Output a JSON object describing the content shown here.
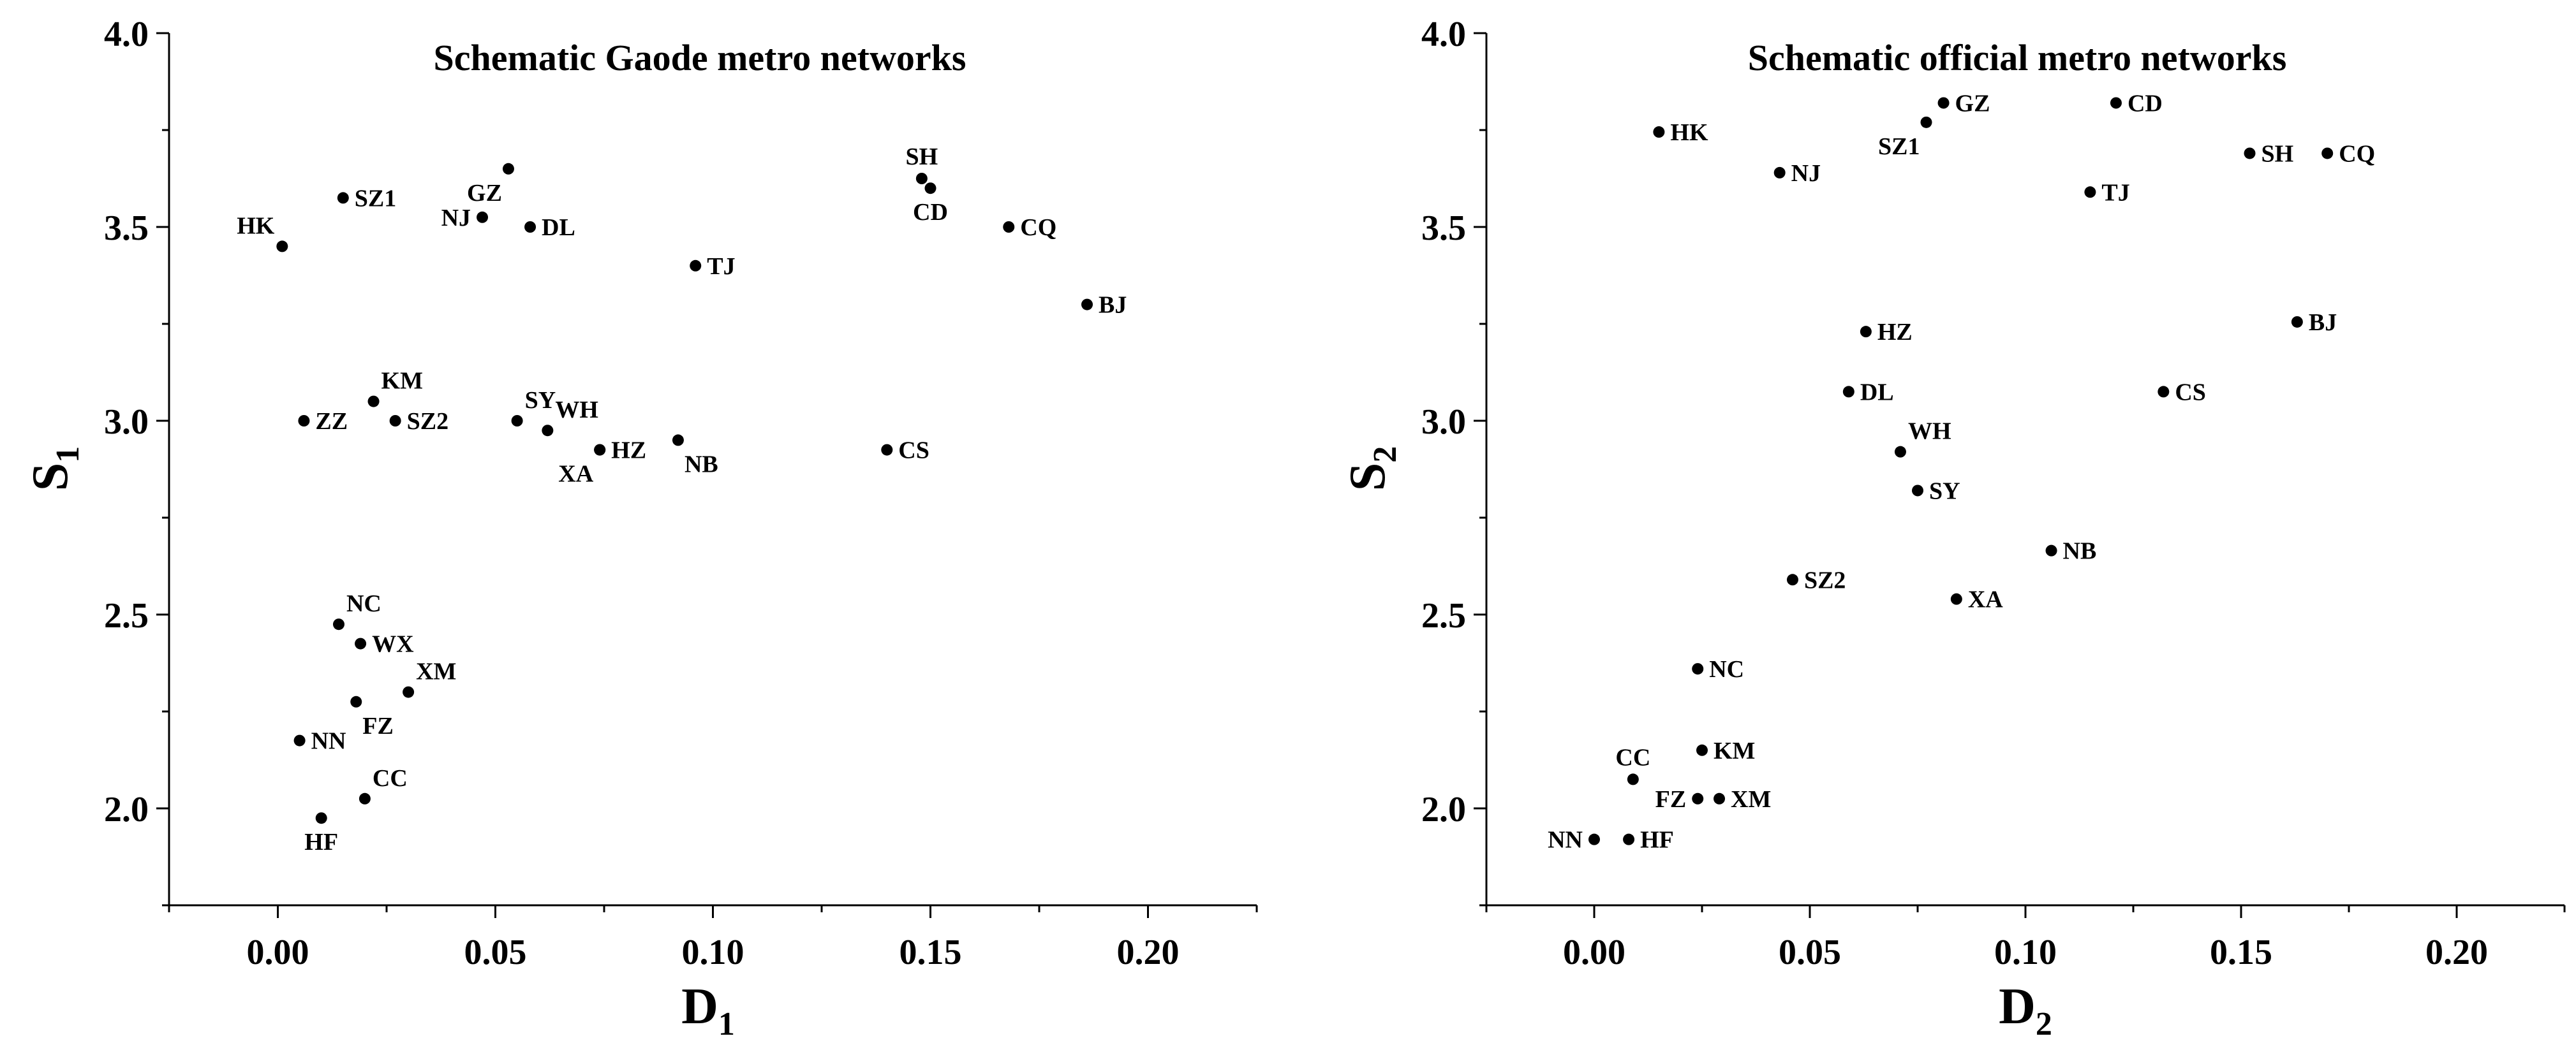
{
  "chart_data": [
    {
      "type": "scatter",
      "title": "Schematic Gaode metro networks",
      "xlabel_main": "D",
      "xlabel_sub": "1",
      "ylabel_main": "S",
      "ylabel_sub": "1",
      "xlim": [
        -0.025,
        0.225
      ],
      "ylim": [
        1.75,
        4.0
      ],
      "xticks": [
        "0.00",
        "0.05",
        "0.10",
        "0.15",
        "0.20"
      ],
      "xtick_values": [
        0.0,
        0.05,
        0.1,
        0.15,
        0.2
      ],
      "yticks": [
        "2.0",
        "2.5",
        "3.0",
        "3.5",
        "4.0"
      ],
      "ytick_values": [
        2.0,
        2.5,
        3.0,
        3.5,
        4.0
      ],
      "points": [
        {
          "label": "HK",
          "x": 0.001,
          "y": 3.45,
          "lpos": "tl"
        },
        {
          "label": "SZ1",
          "x": 0.015,
          "y": 3.575,
          "lpos": "r"
        },
        {
          "label": "NJ",
          "x": 0.047,
          "y": 3.525,
          "lpos": "l"
        },
        {
          "label": "GZ",
          "x": 0.053,
          "y": 3.65,
          "lpos": "bl"
        },
        {
          "label": "DL",
          "x": 0.058,
          "y": 3.5,
          "lpos": "r"
        },
        {
          "label": "TJ",
          "x": 0.096,
          "y": 3.4,
          "lpos": "r"
        },
        {
          "label": "SH",
          "x": 0.148,
          "y": 3.625,
          "lpos": "t"
        },
        {
          "label": "CD",
          "x": 0.15,
          "y": 3.6,
          "lpos": "b"
        },
        {
          "label": "CQ",
          "x": 0.168,
          "y": 3.5,
          "lpos": "r"
        },
        {
          "label": "BJ",
          "x": 0.186,
          "y": 3.3,
          "lpos": "r"
        },
        {
          "label": "KM",
          "x": 0.022,
          "y": 3.05,
          "lpos": "tr"
        },
        {
          "label": "ZZ",
          "x": 0.006,
          "y": 3.0,
          "lpos": "r"
        },
        {
          "label": "SZ2",
          "x": 0.027,
          "y": 3.0,
          "lpos": "r"
        },
        {
          "label": "SY",
          "x": 0.055,
          "y": 3.0,
          "lpos": "tr"
        },
        {
          "label": "WH",
          "x": 0.062,
          "y": 2.975,
          "lpos": "tr"
        },
        {
          "label": "HZ",
          "x": 0.074,
          "y": 2.925,
          "lpos": "r"
        },
        {
          "label": "XA",
          "x": 0.074,
          "y": 2.925,
          "lpos": "bl"
        },
        {
          "label": "NB",
          "x": 0.092,
          "y": 2.95,
          "lpos": "br"
        },
        {
          "label": "CS",
          "x": 0.14,
          "y": 2.925,
          "lpos": "r"
        },
        {
          "label": "NC",
          "x": 0.014,
          "y": 2.475,
          "lpos": "tr"
        },
        {
          "label": "WX",
          "x": 0.019,
          "y": 2.425,
          "lpos": "r"
        },
        {
          "label": "XM",
          "x": 0.03,
          "y": 2.3,
          "lpos": "tr"
        },
        {
          "label": "FZ",
          "x": 0.018,
          "y": 2.275,
          "lpos": "br"
        },
        {
          "label": "NN",
          "x": 0.005,
          "y": 2.175,
          "lpos": "r"
        },
        {
          "label": "CC",
          "x": 0.02,
          "y": 2.025,
          "lpos": "tr"
        },
        {
          "label": "HF",
          "x": 0.01,
          "y": 1.975,
          "lpos": "b"
        }
      ]
    },
    {
      "type": "scatter",
      "title": "Schematic official metro networks",
      "xlabel_main": "D",
      "xlabel_sub": "2",
      "ylabel_main": "S",
      "ylabel_sub": "2",
      "xlim": [
        -0.025,
        0.225
      ],
      "ylim": [
        1.75,
        4.0
      ],
      "xticks": [
        "0.00",
        "0.05",
        "0.10",
        "0.15",
        "0.20"
      ],
      "xtick_values": [
        0.0,
        0.05,
        0.1,
        0.15,
        0.2
      ],
      "yticks": [
        "2.0",
        "2.5",
        "3.0",
        "3.5",
        "4.0"
      ],
      "ytick_values": [
        2.0,
        2.5,
        3.0,
        3.5,
        4.0
      ],
      "points": [
        {
          "label": "HK",
          "x": 0.015,
          "y": 3.745,
          "lpos": "r"
        },
        {
          "label": "NJ",
          "x": 0.043,
          "y": 3.64,
          "lpos": "r"
        },
        {
          "label": "GZ",
          "x": 0.081,
          "y": 3.82,
          "lpos": "r"
        },
        {
          "label": "SZ1",
          "x": 0.077,
          "y": 3.77,
          "lpos": "bl"
        },
        {
          "label": "CD",
          "x": 0.121,
          "y": 3.82,
          "lpos": "r"
        },
        {
          "label": "TJ",
          "x": 0.115,
          "y": 3.59,
          "lpos": "r"
        },
        {
          "label": "SH",
          "x": 0.152,
          "y": 3.69,
          "lpos": "r"
        },
        {
          "label": "CQ",
          "x": 0.17,
          "y": 3.69,
          "lpos": "r"
        },
        {
          "label": "BJ",
          "x": 0.163,
          "y": 3.255,
          "lpos": "r"
        },
        {
          "label": "HZ",
          "x": 0.063,
          "y": 3.23,
          "lpos": "r"
        },
        {
          "label": "DL",
          "x": 0.059,
          "y": 3.075,
          "lpos": "r"
        },
        {
          "label": "CS",
          "x": 0.132,
          "y": 3.075,
          "lpos": "r"
        },
        {
          "label": "WH",
          "x": 0.071,
          "y": 2.92,
          "lpos": "tr"
        },
        {
          "label": "SY",
          "x": 0.075,
          "y": 2.82,
          "lpos": "r"
        },
        {
          "label": "NB",
          "x": 0.106,
          "y": 2.665,
          "lpos": "r"
        },
        {
          "label": "SZ2",
          "x": 0.046,
          "y": 2.59,
          "lpos": "r"
        },
        {
          "label": "XA",
          "x": 0.084,
          "y": 2.54,
          "lpos": "r"
        },
        {
          "label": "NC",
          "x": 0.024,
          "y": 2.36,
          "lpos": "r"
        },
        {
          "label": "KM",
          "x": 0.025,
          "y": 2.15,
          "lpos": "r"
        },
        {
          "label": "CC",
          "x": 0.009,
          "y": 2.075,
          "lpos": "t"
        },
        {
          "label": "FZ",
          "x": 0.024,
          "y": 2.025,
          "lpos": "l"
        },
        {
          "label": "XM",
          "x": 0.029,
          "y": 2.025,
          "lpos": "r"
        },
        {
          "label": "NN",
          "x": 0.0,
          "y": 1.92,
          "lpos": "l"
        },
        {
          "label": "HF",
          "x": 0.008,
          "y": 1.92,
          "lpos": "r"
        }
      ]
    }
  ]
}
